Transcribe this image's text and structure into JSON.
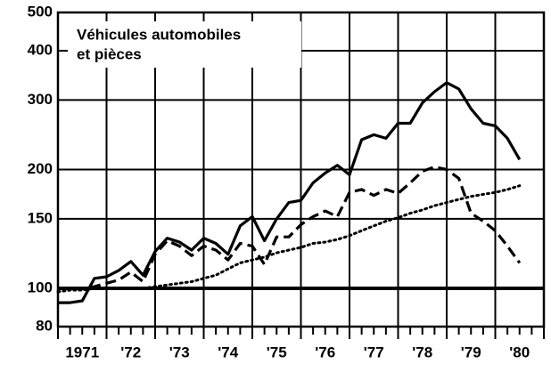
{
  "chart_data": {
    "type": "line",
    "title_lines": [
      "Véhicules automobiles",
      "et pièces"
    ],
    "log_y": true,
    "ylim": [
      80,
      500
    ],
    "yticks": [
      80,
      100,
      150,
      200,
      300,
      400,
      500
    ],
    "reference_line": 100,
    "xlim": [
      1971,
      1981
    ],
    "xgrid": [
      1972,
      1973,
      1974,
      1975,
      1976,
      1977,
      1978,
      1979,
      1980
    ],
    "minor_tick_step": 0.25,
    "xticks": [
      {
        "value": 1971.5,
        "label": "1971"
      },
      {
        "value": 1972.5,
        "label": "'72"
      },
      {
        "value": 1973.5,
        "label": "'73"
      },
      {
        "value": 1974.5,
        "label": "'74"
      },
      {
        "value": 1975.5,
        "label": "'75"
      },
      {
        "value": 1976.5,
        "label": "'76"
      },
      {
        "value": 1977.5,
        "label": "'77"
      },
      {
        "value": 1978.5,
        "label": "'78"
      },
      {
        "value": 1979.5,
        "label": "'79"
      },
      {
        "value": 1980.5,
        "label": "'80"
      }
    ],
    "x": [
      1971,
      1971.25,
      1971.5,
      1971.75,
      1972,
      1972.25,
      1972.5,
      1972.75,
      1973,
      1973.25,
      1973.5,
      1973.75,
      1974,
      1974.25,
      1974.5,
      1974.75,
      1975,
      1975.25,
      1975.5,
      1975.75,
      1976,
      1976.25,
      1976.5,
      1976.75,
      1977,
      1977.25,
      1977.5,
      1977.75,
      1978,
      1978.25,
      1978.5,
      1978.75,
      1979,
      1979.25,
      1979.5,
      1979.75,
      1980,
      1980.25,
      1980.5
    ],
    "series": [
      {
        "color": "#000000",
        "dash": "solid",
        "values": [
          92,
          92,
          93,
          106,
          107,
          111,
          117,
          108,
          124,
          134,
          131,
          125,
          134,
          130,
          122,
          144,
          152,
          132,
          150,
          165,
          167,
          185,
          196,
          205,
          194,
          238,
          245,
          240,
          262,
          262,
          295,
          315,
          332,
          320,
          285,
          262,
          258,
          240,
          212
        ]
      },
      {
        "color": "#000000",
        "dash": "dashed",
        "values": [
          100,
          100,
          100,
          101,
          103,
          105,
          110,
          104,
          122,
          132,
          128,
          121,
          128,
          125,
          118,
          130,
          128,
          115,
          135,
          135,
          145,
          152,
          157,
          152,
          175,
          178,
          172,
          178,
          174,
          185,
          198,
          203,
          200,
          190,
          155,
          148,
          140,
          128,
          116
        ]
      },
      {
        "color": "#000000",
        "dash": "dotted",
        "values": [
          98,
          99,
          99,
          100,
          100,
          100,
          100,
          100,
          101,
          102,
          103,
          104,
          106,
          108,
          112,
          116,
          118,
          120,
          123,
          125,
          127,
          130,
          131,
          133,
          136,
          140,
          144,
          148,
          151,
          155,
          158,
          162,
          165,
          168,
          171,
          173,
          175,
          178,
          182
        ]
      }
    ]
  }
}
